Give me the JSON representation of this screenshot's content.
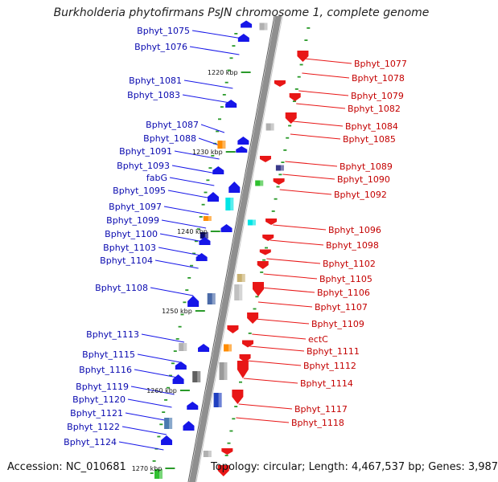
{
  "title": "Burkholderia phytofirmans PsJN chromosome 1, complete genome",
  "footer": {
    "accession": "Accession: NC_010681",
    "topology": "Topology: circular; Length: 4,467,537 bp; Genes: 3,987"
  },
  "colors": {
    "forward_strand": "#1616e8",
    "reverse_strand": "#e81616",
    "left_label": "#0a0ab0",
    "right_label": "#c40000",
    "backbone": "#8f8f8f",
    "tick_mark": "#2a9a2a"
  },
  "scale_marks": [
    "1220 kbp",
    "1230 kbp",
    "1240 kbp",
    "1250 kbp",
    "1260 kbp",
    "1270 kbp"
  ],
  "left_genes": [
    "Bphyt_1075",
    "Bphyt_1076",
    "Bphyt_1081",
    "Bphyt_1083",
    "Bphyt_1087",
    "Bphyt_1088",
    "Bphyt_1091",
    "Bphyt_1093",
    "fabG",
    "Bphyt_1095",
    "Bphyt_1097",
    "Bphyt_1099",
    "Bphyt_1100",
    "Bphyt_1103",
    "Bphyt_1104",
    "Bphyt_1108",
    "Bphyt_1113",
    "Bphyt_1115",
    "Bphyt_1116",
    "Bphyt_1119",
    "Bphyt_1120",
    "Bphyt_1121",
    "Bphyt_1122",
    "Bphyt_1124"
  ],
  "right_genes": [
    "Bphyt_1077",
    "Bphyt_1078",
    "Bphyt_1079",
    "Bphyt_1082",
    "Bphyt_1084",
    "Bphyt_1085",
    "Bphyt_1089",
    "Bphyt_1090",
    "Bphyt_1092",
    "Bphyt_1096",
    "Bphyt_1098",
    "Bphyt_1102",
    "Bphyt_1105",
    "Bphyt_1106",
    "Bphyt_1107",
    "Bphyt_1109",
    "ectC",
    "Bphyt_1111",
    "Bphyt_1112",
    "Bphyt_1114",
    "Bphyt_1117",
    "Bphyt_1118"
  ]
}
